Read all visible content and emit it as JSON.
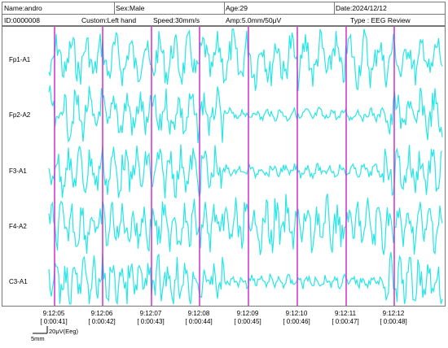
{
  "header": {
    "name": "Name:andro",
    "sex": "Sex:Male",
    "age": "Age:29",
    "date": "Date:2024/12/12",
    "id": "ID:0000008",
    "custom": "Custom:Left hand",
    "speed": "Speed:30mm/s",
    "amp": "Amp:5.0mm/50μV",
    "type": "Type : EEG Review"
  },
  "channels": [
    "Fp1-A1",
    "Fp2-A2",
    "F3-A1",
    "F4-A2",
    "C3-A1"
  ],
  "time_marks": [
    {
      "clock": "9:12:05",
      "elapsed": "[ 0:00:41]"
    },
    {
      "clock": "9:12:06",
      "elapsed": "[ 0:00:42]"
    },
    {
      "clock": "9:12:07",
      "elapsed": "[ 0:00:43]"
    },
    {
      "clock": "9:12:08",
      "elapsed": "[ 0:00:44]"
    },
    {
      "clock": "9:12:09",
      "elapsed": "[ 0:00:45]"
    },
    {
      "clock": "9:12:10",
      "elapsed": "[ 0:00:46]"
    },
    {
      "clock": "9:12:11",
      "elapsed": "[ 0:00:47]"
    },
    {
      "clock": "9:12:12",
      "elapsed": "[ 0:00:48]"
    }
  ],
  "scale": {
    "time": "5mm",
    "amp": "20μV(Eeg)"
  },
  "colors": {
    "trace": "#27e6e6",
    "marker": "#d020d0",
    "border": "#777777"
  }
}
